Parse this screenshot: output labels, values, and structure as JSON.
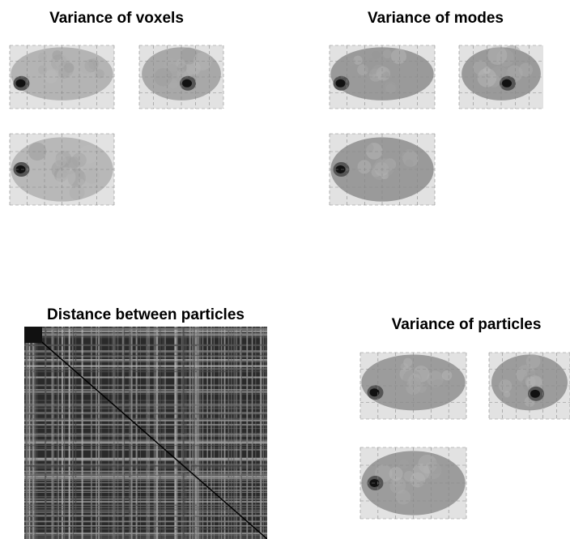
{
  "panels": [
    {
      "title": "Variance of voxels"
    },
    {
      "title": "Variance of modes"
    },
    {
      "title": "Distance between particles"
    },
    {
      "title": "Variance of particles"
    }
  ]
}
